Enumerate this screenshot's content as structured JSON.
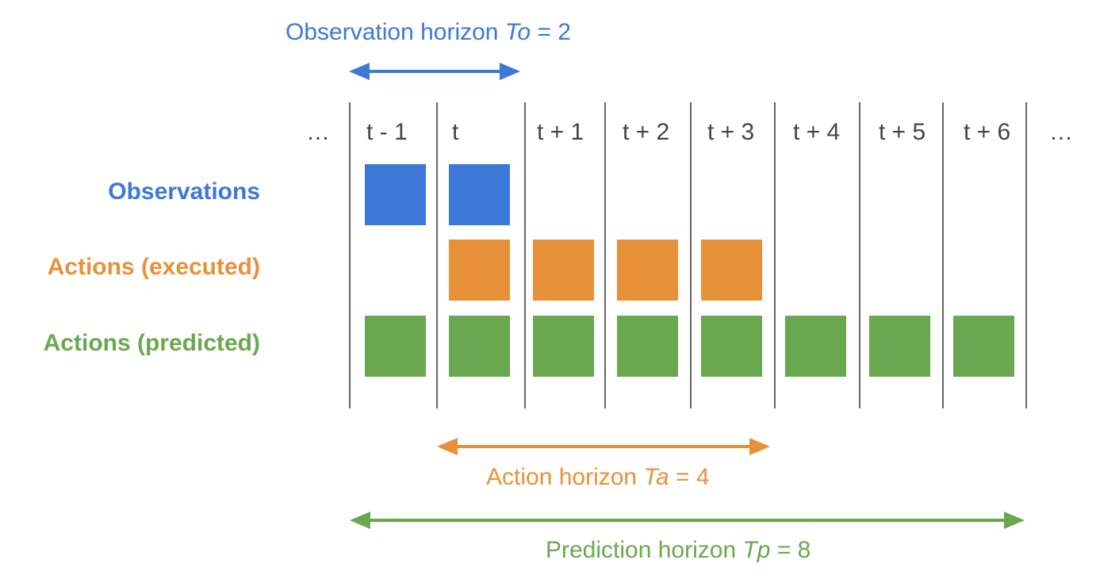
{
  "colors": {
    "observation": "#3c78d8",
    "executed": "#e69138",
    "predicted": "#6aa84f",
    "divider": "#666666",
    "time_text": "#444444"
  },
  "horizons": {
    "observation": {
      "prefix": "Observation horizon ",
      "symbol": "To",
      "suffix": " = 2",
      "value": 2
    },
    "action": {
      "prefix": "Action horizon ",
      "symbol": "Ta",
      "suffix": " = 4",
      "value": 4
    },
    "prediction": {
      "prefix": "Prediction horizon ",
      "symbol": "Tp",
      "suffix": " = 8",
      "value": 8
    }
  },
  "time_labels": {
    "left_ellipsis": "…",
    "right_ellipsis": "…",
    "steps": [
      "t - 1",
      "t",
      "t + 1",
      "t + 2",
      "t + 3",
      "t + 4",
      "t + 5",
      "t + 6"
    ]
  },
  "rows": [
    {
      "label": "Observations",
      "color_key": "observation",
      "filled": [
        true,
        true,
        false,
        false,
        false,
        false,
        false,
        false
      ]
    },
    {
      "label": "Actions (executed)",
      "color_key": "executed",
      "filled": [
        false,
        true,
        true,
        true,
        true,
        false,
        false,
        false
      ]
    },
    {
      "label": "Actions (predicted)",
      "color_key": "predicted",
      "filled": [
        true,
        true,
        true,
        true,
        true,
        true,
        true,
        true
      ]
    }
  ]
}
